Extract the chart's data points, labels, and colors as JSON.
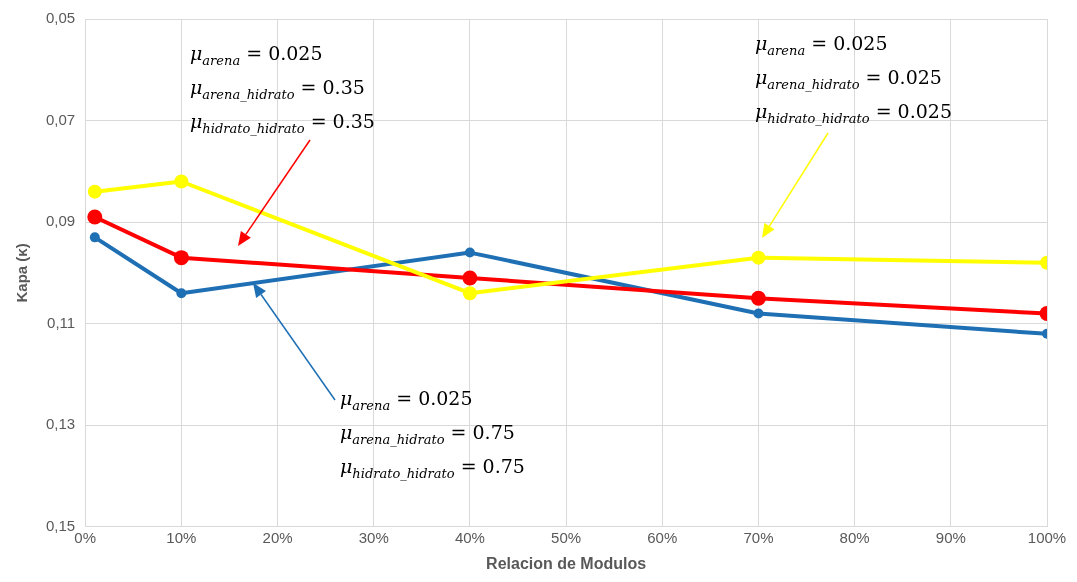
{
  "chart_data": {
    "type": "line",
    "xlabel": "Relacion de Modulos",
    "ylabel": "Kapa (κ)",
    "x": [
      1,
      10,
      40,
      70,
      100
    ],
    "series": [
      {
        "color": "#ffff00",
        "values": [
          0.084,
          0.082,
          0.104,
          0.097,
          0.098
        ]
      },
      {
        "color": "#ff0000",
        "values": [
          0.089,
          0.097,
          0.101,
          0.105,
          0.108
        ]
      },
      {
        "color": "#1f6fb4",
        "values": [
          0.093,
          0.104,
          0.096,
          0.108,
          0.112
        ]
      }
    ],
    "xlim": [
      0,
      100
    ],
    "xticks": [
      {
        "value": 0,
        "label": "0%"
      },
      {
        "value": 10,
        "label": "10%"
      },
      {
        "value": 20,
        "label": "20%"
      },
      {
        "value": 30,
        "label": "30%"
      },
      {
        "value": 40,
        "label": "40%"
      },
      {
        "value": 50,
        "label": "50%"
      },
      {
        "value": 60,
        "label": "60%"
      },
      {
        "value": 70,
        "label": "70%"
      },
      {
        "value": 80,
        "label": "80%"
      },
      {
        "value": 90,
        "label": "90%"
      },
      {
        "value": 100,
        "label": "100%"
      }
    ],
    "ylim": [
      0.15,
      0.05
    ],
    "yticks": [
      {
        "value": 0.05,
        "label": "0,05"
      },
      {
        "value": 0.07,
        "label": "0,07"
      },
      {
        "value": 0.09,
        "label": "0,09"
      },
      {
        "value": 0.11,
        "label": "0,11"
      },
      {
        "value": 0.13,
        "label": "0,13"
      },
      {
        "value": 0.15,
        "label": "0,15"
      }
    ],
    "grid": true,
    "legend": false,
    "marker": "circle",
    "line_style": "solid",
    "annotations": [
      "μ$_{arena}$ = 0.025\nμ$_{arena_hidrato}$ = 0.35\nμ$_{hidrato_hidrato}$ = 0.35",
      "μ$_{arena}$ = 0.025\nμ$_{arena_hidrato}$ = 0.025\nμ$_{hidrato_hidrato}$ = 0.025",
      "μ$_{arena}$ = 0.025\nμ$_{arena_hidrato}$ = 0.75\nμ$_{hidrato_hidrato}$ = 0.75"
    ]
  }
}
